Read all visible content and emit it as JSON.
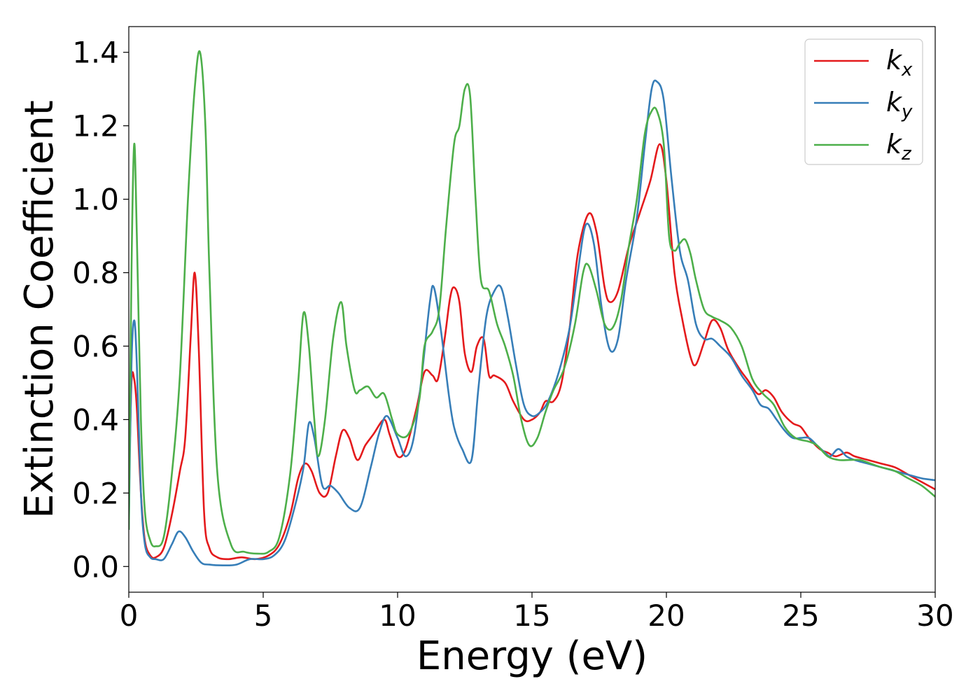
{
  "chart_data": {
    "type": "line",
    "xlabel": "Energy (eV)",
    "ylabel": "Extinction Coefficient",
    "xlim": [
      0,
      30
    ],
    "ylim": [
      -0.07,
      1.47
    ],
    "xticks": [
      "0",
      "5",
      "10",
      "15",
      "20",
      "25",
      "30"
    ],
    "yticks": [
      "0.0",
      "0.2",
      "0.4",
      "0.6",
      "0.8",
      "1.0",
      "1.2",
      "1.4"
    ],
    "grid": false,
    "legend_position": "top-right",
    "series": [
      {
        "name": "k_x",
        "base": "k",
        "sub": "x",
        "color": "#e41a1c",
        "x": [
          0,
          0.1,
          0.2,
          0.3,
          0.45,
          0.6,
          0.8,
          1.0,
          1.3,
          1.6,
          1.9,
          2.1,
          2.3,
          2.45,
          2.6,
          2.8,
          3.0,
          3.3,
          3.7,
          4.2,
          4.7,
          5.2,
          5.6,
          6.0,
          6.3,
          6.55,
          6.8,
          7.1,
          7.4,
          7.7,
          7.95,
          8.2,
          8.5,
          8.8,
          9.1,
          9.5,
          9.7,
          10.0,
          10.3,
          10.7,
          11.0,
          11.3,
          11.5,
          11.75,
          11.95,
          12.1,
          12.3,
          12.5,
          12.75,
          12.95,
          13.2,
          13.4,
          13.6,
          14.0,
          14.3,
          14.7,
          15.0,
          15.3,
          15.5,
          15.8,
          16.1,
          16.4,
          16.7,
          17.1,
          17.4,
          17.7,
          17.9,
          18.2,
          18.6,
          19.0,
          19.4,
          19.75,
          20.0,
          20.3,
          20.6,
          20.9,
          21.1,
          21.4,
          21.7,
          22.0,
          22.3,
          22.7,
          23.0,
          23.4,
          23.7,
          24.0,
          24.3,
          24.7,
          25.0,
          25.3,
          25.7,
          26.0,
          26.3,
          26.7,
          27.0,
          27.5,
          28.0,
          28.5,
          29.0,
          29.5,
          30.0
        ],
        "y": [
          0.2,
          0.5,
          0.51,
          0.43,
          0.2,
          0.07,
          0.03,
          0.025,
          0.05,
          0.14,
          0.26,
          0.35,
          0.62,
          0.8,
          0.6,
          0.15,
          0.05,
          0.025,
          0.02,
          0.025,
          0.02,
          0.03,
          0.06,
          0.14,
          0.24,
          0.28,
          0.26,
          0.2,
          0.2,
          0.3,
          0.37,
          0.35,
          0.29,
          0.33,
          0.36,
          0.4,
          0.36,
          0.3,
          0.32,
          0.43,
          0.53,
          0.52,
          0.51,
          0.62,
          0.73,
          0.76,
          0.72,
          0.58,
          0.53,
          0.6,
          0.62,
          0.52,
          0.52,
          0.5,
          0.45,
          0.4,
          0.4,
          0.42,
          0.45,
          0.45,
          0.5,
          0.65,
          0.85,
          0.96,
          0.91,
          0.76,
          0.72,
          0.75,
          0.87,
          0.96,
          1.05,
          1.15,
          1.05,
          0.8,
          0.67,
          0.57,
          0.55,
          0.61,
          0.67,
          0.65,
          0.59,
          0.54,
          0.51,
          0.47,
          0.48,
          0.46,
          0.42,
          0.39,
          0.38,
          0.35,
          0.32,
          0.31,
          0.3,
          0.31,
          0.3,
          0.29,
          0.28,
          0.27,
          0.25,
          0.23,
          0.21
        ]
      },
      {
        "name": "k_y",
        "base": "k",
        "sub": "y",
        "color": "#377eb8",
        "x": [
          0,
          0.1,
          0.2,
          0.3,
          0.45,
          0.6,
          0.8,
          1.0,
          1.3,
          1.6,
          1.85,
          2.1,
          2.4,
          2.7,
          3.0,
          3.5,
          4.0,
          4.5,
          5.0,
          5.4,
          5.8,
          6.2,
          6.5,
          6.7,
          6.9,
          7.2,
          7.5,
          7.8,
          8.2,
          8.6,
          9.0,
          9.3,
          9.6,
          10.0,
          10.3,
          10.6,
          10.9,
          11.2,
          11.35,
          11.6,
          11.9,
          12.1,
          12.4,
          12.75,
          13.0,
          13.3,
          13.6,
          13.85,
          14.1,
          14.4,
          14.7,
          15.0,
          15.3,
          15.6,
          16.0,
          16.4,
          16.7,
          17.0,
          17.3,
          17.6,
          17.9,
          18.2,
          18.5,
          18.9,
          19.2,
          19.45,
          19.65,
          19.9,
          20.2,
          20.5,
          20.8,
          21.1,
          21.4,
          21.7,
          22.0,
          22.4,
          22.8,
          23.2,
          23.5,
          23.8,
          24.1,
          24.4,
          24.7,
          25.0,
          25.3,
          25.6,
          25.9,
          26.1,
          26.4,
          26.7,
          27.0,
          27.5,
          28.0,
          28.5,
          29.0,
          29.5,
          30.0
        ],
        "y": [
          0.1,
          0.55,
          0.67,
          0.55,
          0.2,
          0.06,
          0.025,
          0.02,
          0.02,
          0.06,
          0.095,
          0.08,
          0.04,
          0.01,
          0.005,
          0.003,
          0.005,
          0.02,
          0.02,
          0.03,
          0.07,
          0.17,
          0.27,
          0.39,
          0.35,
          0.22,
          0.22,
          0.2,
          0.16,
          0.16,
          0.27,
          0.36,
          0.41,
          0.35,
          0.3,
          0.35,
          0.52,
          0.72,
          0.76,
          0.65,
          0.47,
          0.38,
          0.32,
          0.29,
          0.48,
          0.68,
          0.75,
          0.76,
          0.68,
          0.55,
          0.44,
          0.41,
          0.42,
          0.45,
          0.53,
          0.65,
          0.8,
          0.93,
          0.88,
          0.7,
          0.59,
          0.62,
          0.78,
          0.95,
          1.15,
          1.3,
          1.32,
          1.27,
          1.05,
          0.86,
          0.78,
          0.66,
          0.62,
          0.62,
          0.6,
          0.57,
          0.52,
          0.48,
          0.44,
          0.43,
          0.4,
          0.37,
          0.35,
          0.35,
          0.35,
          0.33,
          0.31,
          0.3,
          0.32,
          0.3,
          0.29,
          0.28,
          0.27,
          0.26,
          0.25,
          0.24,
          0.235
        ]
      },
      {
        "name": "k_z",
        "base": "k",
        "sub": "z",
        "color": "#4daf4a",
        "x": [
          0,
          0.1,
          0.2,
          0.3,
          0.45,
          0.6,
          0.8,
          1.0,
          1.3,
          1.6,
          1.9,
          2.2,
          2.45,
          2.65,
          2.85,
          3.0,
          3.3,
          3.8,
          4.3,
          4.8,
          5.2,
          5.6,
          6.0,
          6.3,
          6.5,
          6.7,
          6.9,
          7.05,
          7.3,
          7.6,
          7.9,
          8.1,
          8.4,
          8.6,
          8.9,
          9.2,
          9.5,
          9.8,
          10.0,
          10.4,
          10.8,
          11.0,
          11.3,
          11.55,
          11.8,
          12.1,
          12.3,
          12.5,
          12.7,
          12.9,
          13.1,
          13.4,
          13.7,
          14.0,
          14.3,
          14.6,
          14.9,
          15.2,
          15.5,
          15.8,
          16.2,
          16.6,
          16.9,
          17.1,
          17.4,
          17.7,
          18.0,
          18.3,
          18.6,
          18.9,
          19.2,
          19.45,
          19.65,
          19.9,
          20.1,
          20.3,
          20.5,
          20.7,
          20.9,
          21.1,
          21.4,
          21.7,
          22.0,
          22.4,
          22.8,
          23.2,
          23.6,
          24.0,
          24.4,
          24.8,
          25.3,
          25.6,
          26.0,
          26.4,
          26.8,
          27.2,
          27.6,
          28.0,
          28.5,
          29.0,
          29.5,
          30.0
        ],
        "y": [
          0.1,
          0.8,
          1.15,
          0.9,
          0.4,
          0.15,
          0.07,
          0.055,
          0.08,
          0.25,
          0.52,
          1.0,
          1.3,
          1.4,
          1.2,
          0.8,
          0.25,
          0.06,
          0.04,
          0.035,
          0.04,
          0.08,
          0.25,
          0.5,
          0.69,
          0.6,
          0.4,
          0.3,
          0.4,
          0.62,
          0.72,
          0.6,
          0.48,
          0.48,
          0.49,
          0.46,
          0.47,
          0.4,
          0.36,
          0.36,
          0.45,
          0.6,
          0.64,
          0.7,
          0.92,
          1.15,
          1.2,
          1.3,
          1.28,
          1.0,
          0.78,
          0.75,
          0.66,
          0.6,
          0.52,
          0.4,
          0.33,
          0.35,
          0.42,
          0.48,
          0.54,
          0.66,
          0.8,
          0.82,
          0.75,
          0.66,
          0.65,
          0.72,
          0.87,
          1.0,
          1.18,
          1.24,
          1.24,
          1.15,
          0.9,
          0.86,
          0.88,
          0.89,
          0.85,
          0.78,
          0.7,
          0.68,
          0.67,
          0.65,
          0.6,
          0.51,
          0.47,
          0.44,
          0.38,
          0.35,
          0.34,
          0.33,
          0.3,
          0.29,
          0.29,
          0.29,
          0.28,
          0.27,
          0.26,
          0.24,
          0.22,
          0.19
        ]
      }
    ]
  }
}
